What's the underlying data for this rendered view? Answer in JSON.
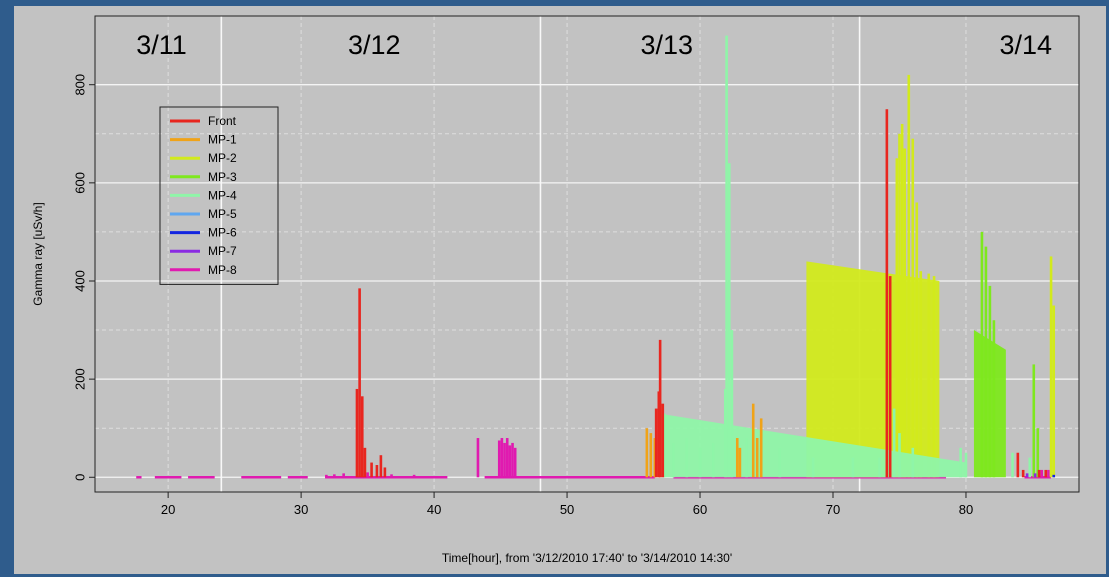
{
  "chart_data": {
    "type": "bar",
    "xlabel": "Time[hour], from '3/12/2010 17:40' to '3/14/2010 14:30'",
    "ylabel": "Gamma ray [uSv/h]",
    "xlim": [
      14.5,
      88.5
    ],
    "ylim": [
      -30,
      940
    ],
    "xticks": [
      20,
      30,
      40,
      50,
      60,
      70,
      80
    ],
    "yticks": [
      0,
      200,
      400,
      600,
      800
    ],
    "grid": true,
    "legend_position": "top-left",
    "day_labels": [
      {
        "label": "3/11",
        "x": 19.5
      },
      {
        "label": "3/12",
        "x": 35.5
      },
      {
        "label": "3/13",
        "x": 57.5
      },
      {
        "label": "3/14",
        "x": 84.5
      }
    ],
    "day_dividers": [
      24,
      48,
      72
    ],
    "series": [
      {
        "name": "Front",
        "color": "#e8261f",
        "bars": [
          [
            34.2,
            180
          ],
          [
            34.4,
            385
          ],
          [
            34.6,
            165
          ],
          [
            34.8,
            60
          ],
          [
            35.3,
            30
          ],
          [
            35.7,
            25
          ],
          [
            36.0,
            45
          ],
          [
            36.3,
            20
          ],
          [
            56.7,
            140
          ],
          [
            56.9,
            175
          ],
          [
            57.0,
            280
          ],
          [
            57.2,
            150
          ],
          [
            74.05,
            750
          ],
          [
            74.3,
            410
          ],
          [
            83.9,
            50
          ],
          [
            84.3,
            15
          ],
          [
            85.5,
            15
          ],
          [
            86.0,
            15
          ]
        ]
      },
      {
        "name": "MP-1",
        "color": "#f0a318",
        "bars": [
          [
            56.0,
            100
          ],
          [
            56.3,
            90
          ],
          [
            56.6,
            80
          ],
          [
            62.8,
            80
          ],
          [
            63.0,
            60
          ],
          [
            64.0,
            150
          ],
          [
            64.3,
            80
          ],
          [
            64.6,
            120
          ]
        ]
      },
      {
        "name": "MP-2",
        "color": "#d2ea1c",
        "areas": [
          [
            68.0,
            78.0,
            400,
            440
          ]
        ],
        "bars": [
          [
            74.8,
            650
          ],
          [
            75.0,
            700
          ],
          [
            75.2,
            720
          ],
          [
            75.4,
            670
          ],
          [
            75.7,
            820
          ],
          [
            76.0,
            690
          ],
          [
            76.3,
            560
          ],
          [
            76.6,
            420
          ],
          [
            77.2,
            415
          ],
          [
            77.6,
            410
          ],
          [
            86.4,
            450
          ],
          [
            86.6,
            350
          ]
        ]
      },
      {
        "name": "MP-3",
        "color": "#7ee81e",
        "areas": [
          [
            80.6,
            83.0,
            260,
            300
          ]
        ],
        "bars": [
          [
            81.2,
            500
          ],
          [
            81.5,
            470
          ],
          [
            81.8,
            390
          ],
          [
            82.1,
            320
          ],
          [
            85.1,
            230
          ],
          [
            85.4,
            100
          ]
        ]
      },
      {
        "name": "MP-4",
        "color": "#8ff5a8",
        "areas": [
          [
            56.9,
            80.0,
            30,
            130
          ]
        ],
        "bars": [
          [
            57.3,
            130
          ],
          [
            58.0,
            70
          ],
          [
            59.0,
            80
          ],
          [
            60.0,
            60
          ],
          [
            61.0,
            70
          ],
          [
            61.9,
            180
          ],
          [
            62.0,
            900
          ],
          [
            62.2,
            640
          ],
          [
            62.4,
            300
          ],
          [
            63.5,
            80
          ],
          [
            64.5,
            50
          ],
          [
            66.0,
            60
          ],
          [
            68.5,
            40
          ],
          [
            71.5,
            40
          ],
          [
            73.5,
            40
          ],
          [
            74.6,
            140
          ],
          [
            75.0,
            90
          ],
          [
            76.0,
            60
          ],
          [
            79.6,
            60
          ],
          [
            80.0,
            50
          ],
          [
            83.5,
            50
          ],
          [
            84.8,
            40
          ]
        ]
      },
      {
        "name": "MP-5",
        "color": "#5fa7f0",
        "bars": []
      },
      {
        "name": "MP-6",
        "color": "#1225e0",
        "bars": [
          [
            86.6,
            5
          ]
        ]
      },
      {
        "name": "MP-7",
        "color": "#8a2be2",
        "bars": [
          [
            84.6,
            8
          ],
          [
            85.2,
            8
          ]
        ]
      },
      {
        "name": "MP-8",
        "color": "#e01ab0",
        "lines": [
          [
            17.6,
            18.0
          ],
          [
            19.0,
            21.0
          ],
          [
            21.5,
            23.5
          ],
          [
            25.5,
            28.5
          ],
          [
            29.0,
            30.5
          ],
          [
            31.8,
            41.0
          ],
          [
            43.8,
            56.6
          ],
          [
            58.0,
            78.5
          ],
          [
            84.4,
            86.4
          ]
        ],
        "bars": [
          [
            43.3,
            80
          ],
          [
            44.9,
            75
          ],
          [
            45.1,
            80
          ],
          [
            45.3,
            70
          ],
          [
            45.5,
            80
          ],
          [
            45.7,
            65
          ],
          [
            45.9,
            70
          ],
          [
            46.1,
            60
          ],
          [
            31.9,
            5
          ],
          [
            32.5,
            6
          ],
          [
            33.2,
            8
          ],
          [
            35.0,
            10
          ],
          [
            36.8,
            6
          ],
          [
            38.5,
            5
          ],
          [
            85.4,
            15
          ],
          [
            85.7,
            15
          ],
          [
            86.2,
            15
          ]
        ]
      }
    ]
  }
}
